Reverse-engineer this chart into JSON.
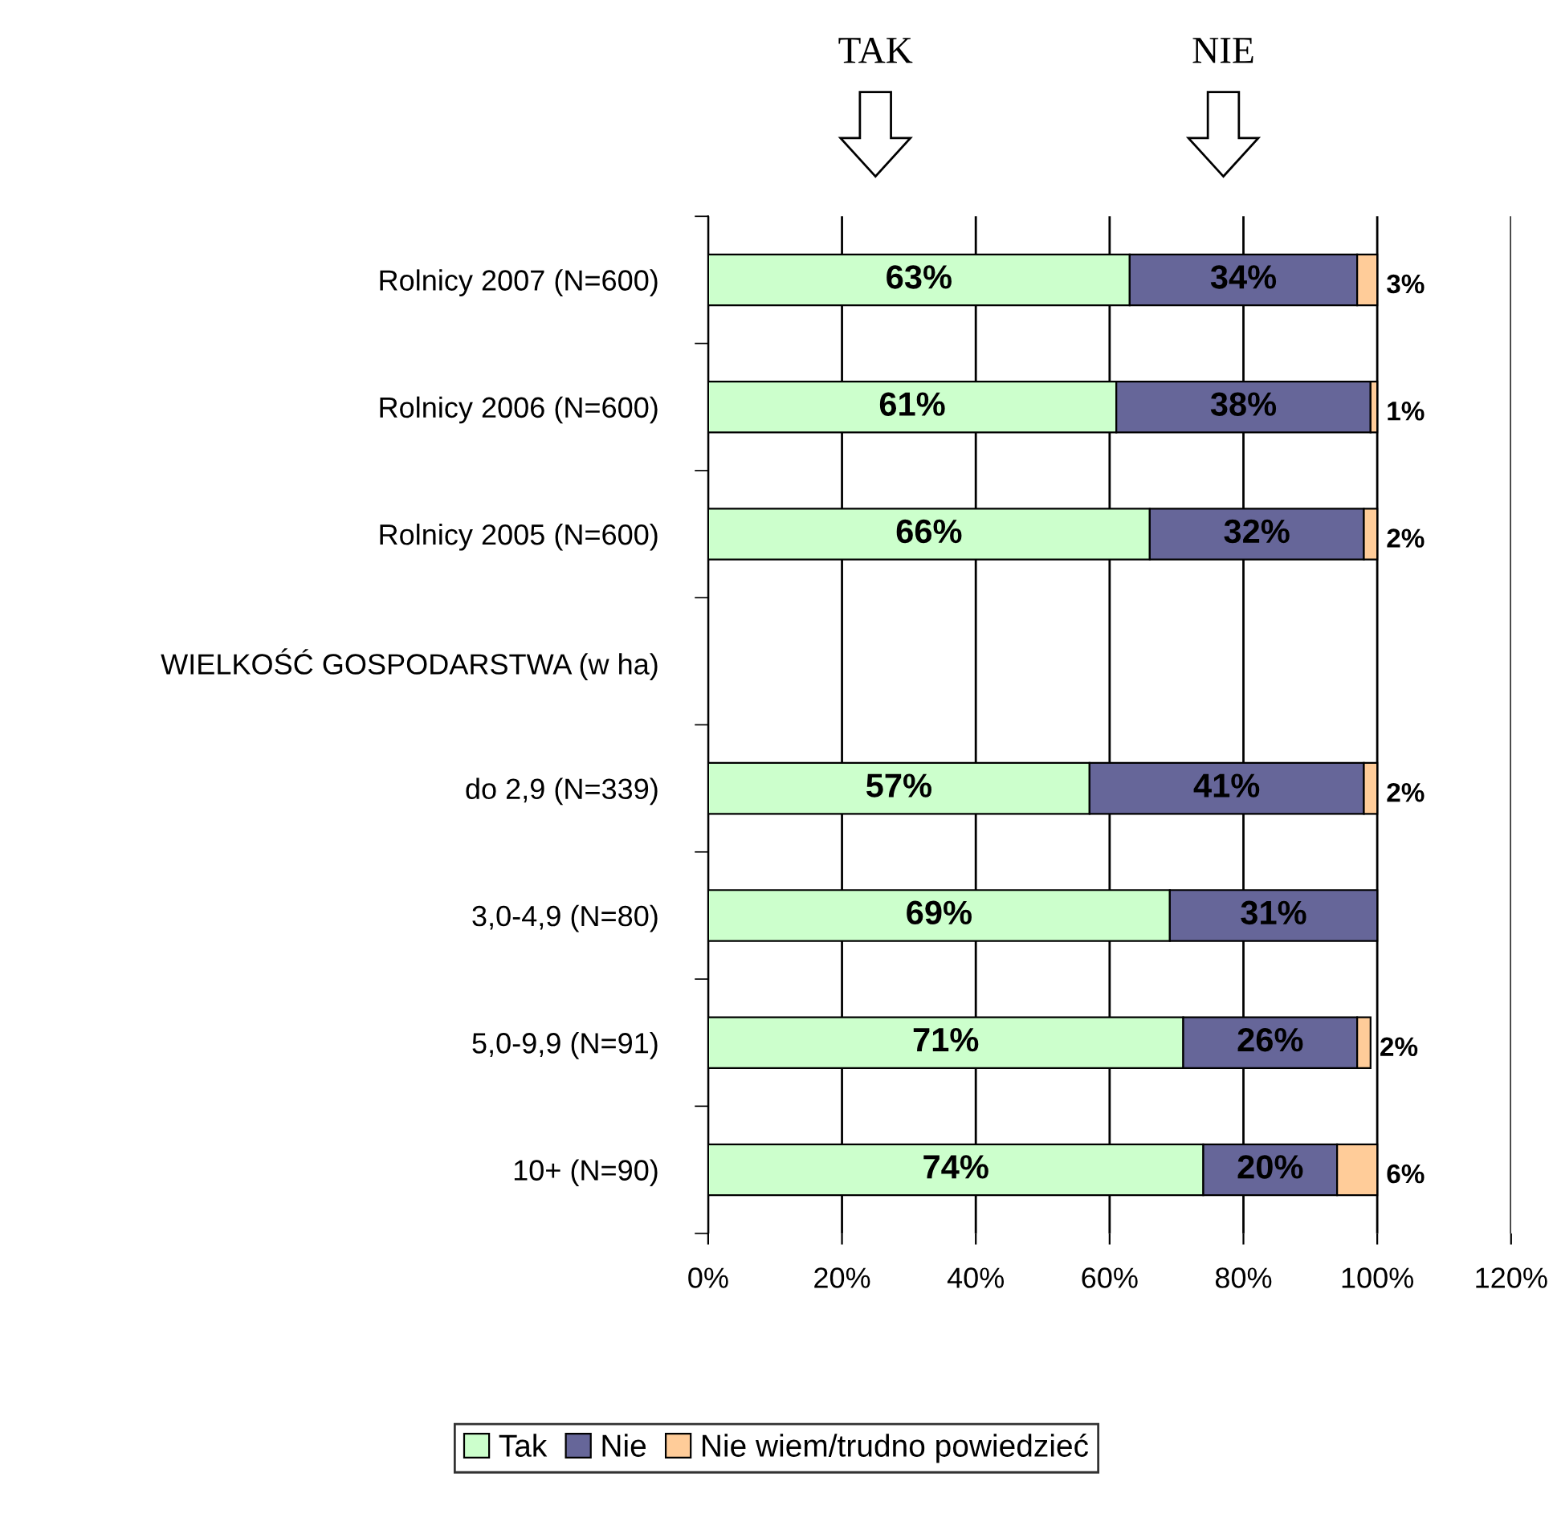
{
  "chart_data": {
    "type": "bar",
    "orientation": "horizontal",
    "stacked": true,
    "categories": [
      "Rolnicy 2007 (N=600)",
      "Rolnicy 2006 (N=600)",
      "Rolnicy 2005 (N=600)",
      "WIELKOŚĆ GOSPODARSTWA (w ha)",
      "do 2,9 (N=339)",
      "3,0-4,9 (N=80)",
      "5,0-9,9 (N=91)",
      "10+ (N=90)"
    ],
    "series": [
      {
        "name": "Tak",
        "color": "#ccffcc",
        "values": [
          63,
          61,
          66,
          null,
          57,
          69,
          71,
          74
        ],
        "value_labels": [
          "63%",
          "61%",
          "66%",
          null,
          "57%",
          "69%",
          "71%",
          "74%"
        ]
      },
      {
        "name": "Nie",
        "color": "#666699",
        "values": [
          34,
          38,
          32,
          null,
          41,
          31,
          26,
          20
        ],
        "value_labels": [
          "34%",
          "38%",
          "32%",
          null,
          "41%",
          "31%",
          "26%",
          "20%"
        ]
      },
      {
        "name": "Nie wiem/trudno powiedzieć",
        "color": "#ffcc99",
        "values": [
          3,
          1,
          2,
          null,
          2,
          null,
          2,
          6
        ],
        "value_labels": [
          "3%",
          "1%",
          "2%",
          null,
          "2%",
          null,
          "2%",
          "6%"
        ]
      }
    ],
    "xlim": [
      0,
      120
    ],
    "xticks": [
      {
        "value": 0,
        "label": "0%"
      },
      {
        "value": 20,
        "label": "20%"
      },
      {
        "value": 40,
        "label": "40%"
      },
      {
        "value": 60,
        "label": "60%"
      },
      {
        "value": 80,
        "label": "80%"
      },
      {
        "value": 100,
        "label": "100%"
      },
      {
        "value": 120,
        "label": "120%"
      }
    ],
    "grid": "x",
    "legend": "bottom",
    "annotations": [
      "TAK",
      "NIE"
    ]
  }
}
